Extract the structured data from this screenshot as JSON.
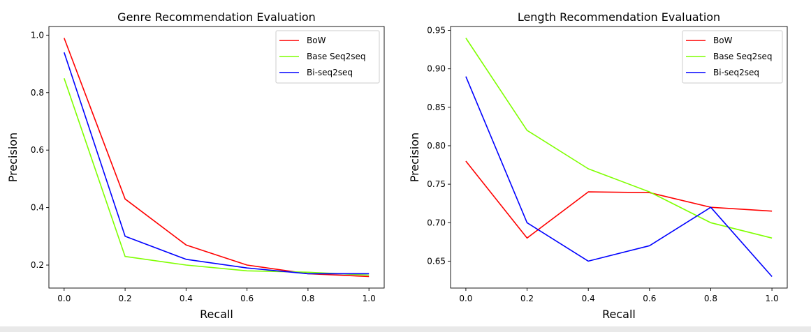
{
  "chart_data": [
    {
      "type": "line",
      "title": "Genre Recommendation Evaluation",
      "xlabel": "Recall",
      "ylabel": "Precision",
      "xlim": [
        -0.05,
        1.05
      ],
      "ylim": [
        0.12,
        1.03
      ],
      "x_ticks": [
        0.0,
        0.2,
        0.4,
        0.6,
        0.8,
        1.0
      ],
      "x_tick_labels": [
        "0.0",
        "0.2",
        "0.4",
        "0.6",
        "0.8",
        "1.0"
      ],
      "y_ticks": [
        0.2,
        0.4,
        0.6,
        0.8,
        1.0
      ],
      "y_tick_labels": [
        "0.2",
        "0.4",
        "0.6",
        "0.8",
        "1.0"
      ],
      "legend_position": "top-right",
      "x": [
        0.0,
        0.2,
        0.4,
        0.6,
        0.8,
        1.0
      ],
      "series": [
        {
          "name": "BoW",
          "color": "#ff0000",
          "values": [
            0.99,
            0.43,
            0.27,
            0.2,
            0.17,
            0.16
          ]
        },
        {
          "name": "Base Seq2seq",
          "color": "#7fff00",
          "values": [
            0.85,
            0.23,
            0.2,
            0.18,
            0.175,
            0.165
          ]
        },
        {
          "name": "Bi-seq2seq",
          "color": "#0000ff",
          "values": [
            0.94,
            0.3,
            0.22,
            0.19,
            0.17,
            0.17
          ]
        }
      ]
    },
    {
      "type": "line",
      "title": "Length Recommendation Evaluation",
      "xlabel": "Recall",
      "ylabel": "Precision",
      "xlim": [
        -0.05,
        1.05
      ],
      "ylim": [
        0.615,
        0.955
      ],
      "x_ticks": [
        0.0,
        0.2,
        0.4,
        0.6,
        0.8,
        1.0
      ],
      "x_tick_labels": [
        "0.0",
        "0.2",
        "0.4",
        "0.6",
        "0.8",
        "1.0"
      ],
      "y_ticks": [
        0.65,
        0.7,
        0.75,
        0.8,
        0.85,
        0.9,
        0.95
      ],
      "y_tick_labels": [
        "0.65",
        "0.70",
        "0.75",
        "0.80",
        "0.85",
        "0.90",
        "0.95"
      ],
      "legend_position": "top-right",
      "x": [
        0.0,
        0.2,
        0.4,
        0.6,
        0.8,
        1.0
      ],
      "series": [
        {
          "name": "BoW",
          "color": "#ff0000",
          "values": [
            0.78,
            0.68,
            0.74,
            0.739,
            0.72,
            0.715
          ]
        },
        {
          "name": "Base Seq2seq",
          "color": "#7fff00",
          "values": [
            0.94,
            0.82,
            0.77,
            0.74,
            0.7,
            0.68
          ]
        },
        {
          "name": "Bi-seq2seq",
          "color": "#0000ff",
          "values": [
            0.89,
            0.7,
            0.65,
            0.67,
            0.72,
            0.63
          ]
        }
      ]
    }
  ]
}
